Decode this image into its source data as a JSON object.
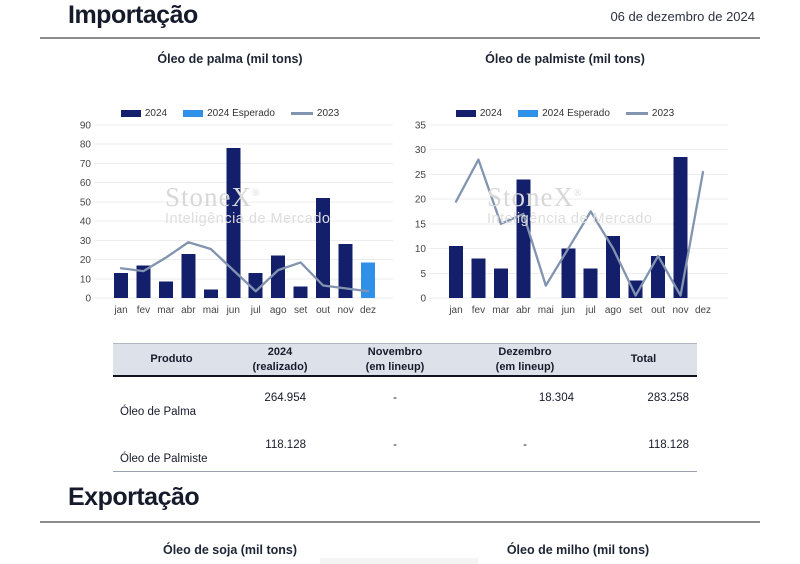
{
  "header": {
    "title": "Importação",
    "date": "06 de dezembro de 2024"
  },
  "export_section": {
    "title": "Exportação"
  },
  "watermark": {
    "brand": "StoneX",
    "reg": "®",
    "sub": "Inteligência de Mercado"
  },
  "colors": {
    "navy": "#141f6b",
    "blue": "#2e90e8",
    "line": "#8294b0",
    "grid": "#ededed"
  },
  "chart_data": [
    {
      "type": "bar",
      "title": "Óleo de palma (mil tons)",
      "categories": [
        "jan",
        "fev",
        "mar",
        "abr",
        "mai",
        "jun",
        "jul",
        "ago",
        "set",
        "out",
        "nov",
        "dez"
      ],
      "ylim": [
        0,
        90
      ],
      "ystep": 10,
      "grid": true,
      "legend_position": "top",
      "series": [
        {
          "name": "2024",
          "type": "bar",
          "color_key": "navy",
          "values": [
            13,
            17,
            8.5,
            23,
            4.5,
            78,
            13,
            22,
            6,
            52,
            28,
            null
          ]
        },
        {
          "name": "2024 Esperado",
          "type": "bar",
          "color_key": "blue",
          "values": [
            null,
            null,
            null,
            null,
            null,
            null,
            null,
            null,
            null,
            null,
            null,
            18.5
          ]
        },
        {
          "name": "2023",
          "type": "line",
          "color_key": "line",
          "values": [
            15.5,
            14,
            21,
            29,
            25.5,
            14.5,
            3.5,
            14.5,
            18.5,
            6.5,
            5,
            3.5
          ]
        }
      ]
    },
    {
      "type": "bar",
      "title": "Óleo de palmiste (mil tons)",
      "categories": [
        "jan",
        "fev",
        "mar",
        "abr",
        "mai",
        "jun",
        "jul",
        "ago",
        "set",
        "out",
        "nov",
        "dez"
      ],
      "ylim": [
        0,
        35
      ],
      "ystep": 5,
      "grid": true,
      "legend_position": "top",
      "series": [
        {
          "name": "2024",
          "type": "bar",
          "color_key": "navy",
          "values": [
            10.5,
            8,
            6,
            24,
            null,
            10,
            6,
            12.5,
            3.5,
            8.5,
            28.5,
            null
          ]
        },
        {
          "name": "2024 Esperado",
          "type": "bar",
          "color_key": "blue",
          "values": [
            null,
            null,
            null,
            null,
            null,
            null,
            null,
            null,
            null,
            null,
            null,
            null
          ]
        },
        {
          "name": "2023",
          "type": "line",
          "color_key": "line",
          "values": [
            19.5,
            28,
            15,
            17,
            2.5,
            10,
            17.5,
            10,
            0.5,
            8.5,
            0.5,
            25.5
          ]
        }
      ]
    }
  ],
  "table": {
    "headers": [
      {
        "l1": "Produto",
        "l2": ""
      },
      {
        "l1": "2024",
        "l2": "(realizado)"
      },
      {
        "l1": "Novembro",
        "l2": "(em lineup)"
      },
      {
        "l1": "Dezembro",
        "l2": "(em lineup)"
      },
      {
        "l1": "Total",
        "l2": ""
      }
    ],
    "rows": [
      {
        "produto": "Óleo de Palma",
        "realizado": "264.954",
        "novembro": "-",
        "dezembro": "18.304",
        "total": "283.258"
      },
      {
        "produto": "Óleo de Palmiste",
        "realizado": "118.128",
        "novembro": "-",
        "dezembro": "-",
        "total": "118.128"
      }
    ]
  },
  "bottom_charts": [
    {
      "title": "Óleo de soja (mil tons)"
    },
    {
      "title": "Óleo de milho (mil tons)"
    }
  ]
}
